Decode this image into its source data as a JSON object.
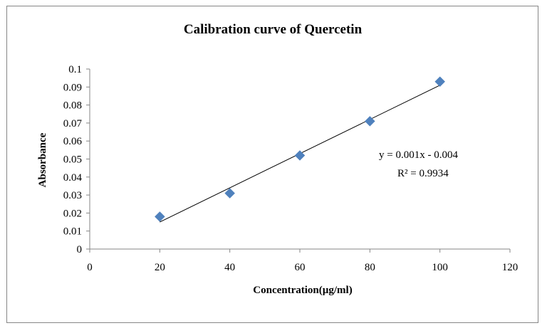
{
  "chart_data": {
    "type": "scatter",
    "title": "Calibration  curve of Quercetin",
    "xlabel": "Concentration(µg/ml)",
    "ylabel": "Absorbance",
    "xlim": [
      0,
      120
    ],
    "ylim": [
      0,
      0.1
    ],
    "x_ticks": [
      "0",
      "20",
      "40",
      "60",
      "80",
      "100",
      "120"
    ],
    "y_ticks": [
      "0",
      "0.01",
      "0.02",
      "0.03",
      "0.04",
      "0.05",
      "0.06",
      "0.07",
      "0.08",
      "0.09",
      "0.1"
    ],
    "grid": false,
    "legend": "none",
    "series": [
      {
        "x": [
          20,
          40,
          60,
          80,
          100
        ],
        "y": [
          0.018,
          0.031,
          0.052,
          0.071,
          0.093
        ],
        "color": "#4f81bd",
        "marker": "diamond"
      }
    ],
    "trendline": {
      "type": "linear",
      "x_range": [
        20,
        100
      ],
      "y_at_start": 0.015,
      "y_at_end": 0.091,
      "color": "#000000"
    },
    "equation": "y = 0.001x  - 0.004",
    "r_squared": "R² = 0.9934"
  }
}
